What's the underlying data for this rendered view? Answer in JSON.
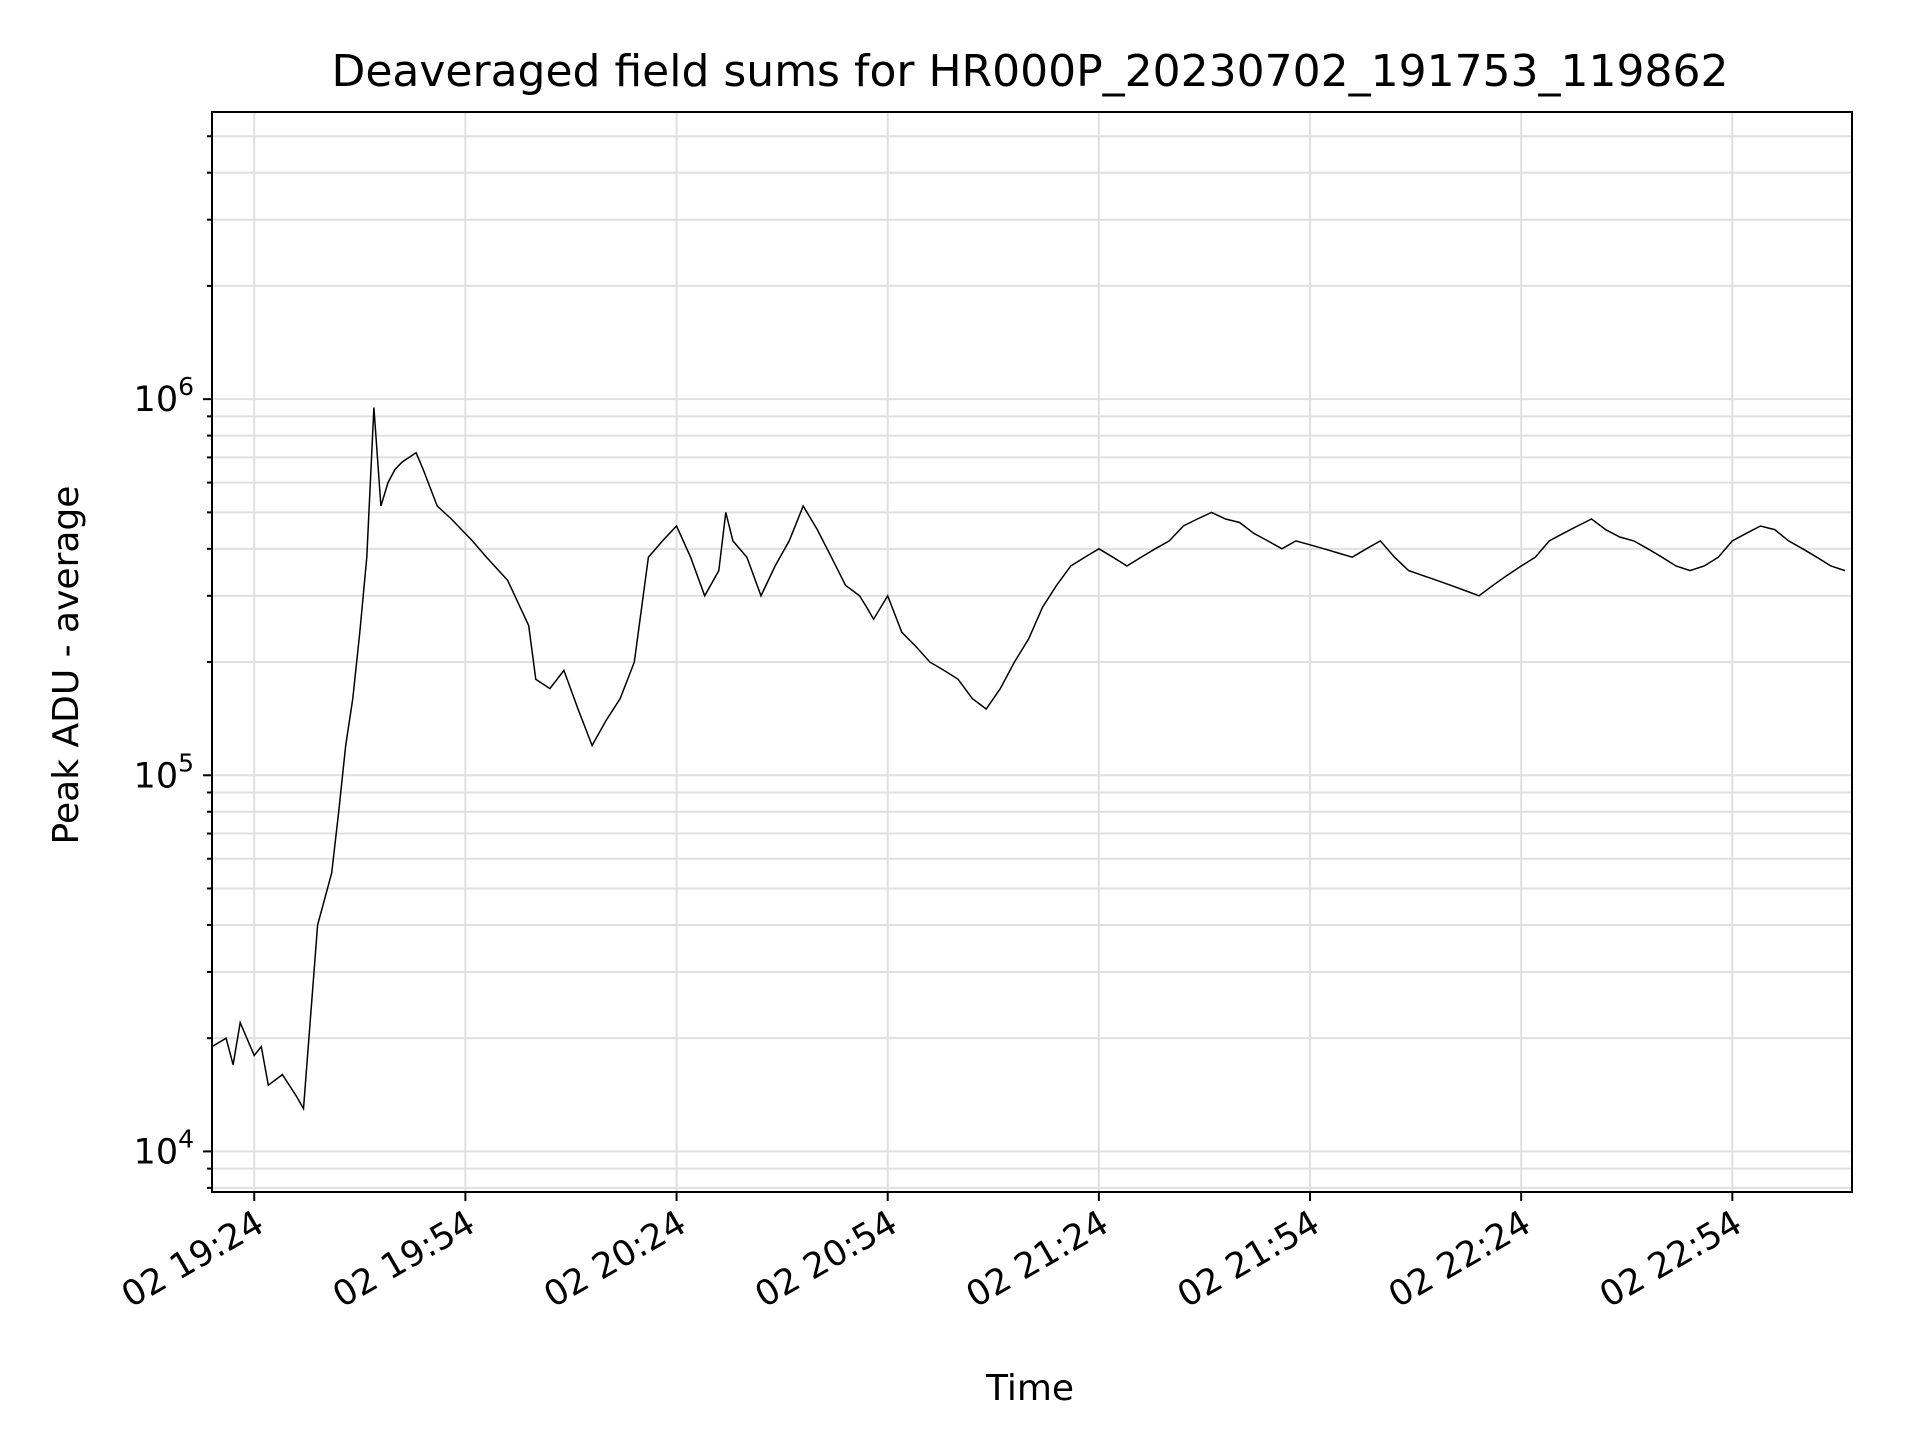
{
  "chart_data": {
    "type": "line",
    "title": "Deaveraged field sums for HR000P_20230702_191753_119862",
    "xlabel": "Time",
    "ylabel": "Peak ADU - average",
    "yscale": "log",
    "grid": true,
    "xlim": [
      "2023-07-02 19:18",
      "2023-07-02 23:11"
    ],
    "ylim": [
      7800,
      5800000
    ],
    "xticks": [
      {
        "value": "2023-07-02 19:24",
        "label": "02 19:24"
      },
      {
        "value": "2023-07-02 19:54",
        "label": "02 19:54"
      },
      {
        "value": "2023-07-02 20:24",
        "label": "02 20:24"
      },
      {
        "value": "2023-07-02 20:54",
        "label": "02 20:54"
      },
      {
        "value": "2023-07-02 21:24",
        "label": "02 21:24"
      },
      {
        "value": "2023-07-02 21:54",
        "label": "02 21:54"
      },
      {
        "value": "2023-07-02 22:24",
        "label": "02 22:24"
      },
      {
        "value": "2023-07-02 22:54",
        "label": "02 22:54"
      }
    ],
    "yticks": [
      {
        "value": 10000,
        "base": "10",
        "exp": "4"
      },
      {
        "value": 100000,
        "base": "10",
        "exp": "5"
      },
      {
        "value": 1000000,
        "base": "10",
        "exp": "6"
      }
    ],
    "line_color": "#000000",
    "grid_color": "#e0e0e0",
    "series": [
      {
        "x": [
          "2023-07-02 19:18",
          "2023-07-02 19:20",
          "2023-07-02 19:21",
          "2023-07-02 19:22",
          "2023-07-02 19:24",
          "2023-07-02 19:25",
          "2023-07-02 19:26",
          "2023-07-02 19:28",
          "2023-07-02 19:30",
          "2023-07-02 19:31",
          "2023-07-02 19:33",
          "2023-07-02 19:35",
          "2023-07-02 19:36",
          "2023-07-02 19:37",
          "2023-07-02 19:38",
          "2023-07-02 19:39",
          "2023-07-02 19:40",
          "2023-07-02 19:41",
          "2023-07-02 19:42",
          "2023-07-02 19:43",
          "2023-07-02 19:44",
          "2023-07-02 19:45",
          "2023-07-02 19:46",
          "2023-07-02 19:47",
          "2023-07-02 19:48",
          "2023-07-02 19:50",
          "2023-07-02 19:52",
          "2023-07-02 19:55",
          "2023-07-02 19:57",
          "2023-07-02 20:00",
          "2023-07-02 20:03",
          "2023-07-02 20:04",
          "2023-07-02 20:06",
          "2023-07-02 20:08",
          "2023-07-02 20:10",
          "2023-07-02 20:12",
          "2023-07-02 20:14",
          "2023-07-02 20:16",
          "2023-07-02 20:18",
          "2023-07-02 20:20",
          "2023-07-02 20:22",
          "2023-07-02 20:24",
          "2023-07-02 20:26",
          "2023-07-02 20:28",
          "2023-07-02 20:30",
          "2023-07-02 20:31",
          "2023-07-02 20:32",
          "2023-07-02 20:34",
          "2023-07-02 20:36",
          "2023-07-02 20:38",
          "2023-07-02 20:40",
          "2023-07-02 20:42",
          "2023-07-02 20:44",
          "2023-07-02 20:46",
          "2023-07-02 20:48",
          "2023-07-02 20:50",
          "2023-07-02 20:51",
          "2023-07-02 20:52",
          "2023-07-02 20:54",
          "2023-07-02 20:56",
          "2023-07-02 20:58",
          "2023-07-02 21:00",
          "2023-07-02 21:02",
          "2023-07-02 21:04",
          "2023-07-02 21:06",
          "2023-07-02 21:08",
          "2023-07-02 21:10",
          "2023-07-02 21:12",
          "2023-07-02 21:14",
          "2023-07-02 21:16",
          "2023-07-02 21:18",
          "2023-07-02 21:20",
          "2023-07-02 21:22",
          "2023-07-02 21:24",
          "2023-07-02 21:26",
          "2023-07-02 21:28",
          "2023-07-02 21:30",
          "2023-07-02 21:32",
          "2023-07-02 21:34",
          "2023-07-02 21:36",
          "2023-07-02 21:38",
          "2023-07-02 21:40",
          "2023-07-02 21:42",
          "2023-07-02 21:44",
          "2023-07-02 21:46",
          "2023-07-02 21:48",
          "2023-07-02 21:50",
          "2023-07-02 21:52",
          "2023-07-02 21:54",
          "2023-07-02 21:56",
          "2023-07-02 21:58",
          "2023-07-02 22:00",
          "2023-07-02 22:02",
          "2023-07-02 22:04",
          "2023-07-02 22:06",
          "2023-07-02 22:08",
          "2023-07-02 22:10",
          "2023-07-02 22:12",
          "2023-07-02 22:14",
          "2023-07-02 22:16",
          "2023-07-02 22:18",
          "2023-07-02 22:20",
          "2023-07-02 22:22",
          "2023-07-02 22:24",
          "2023-07-02 22:26",
          "2023-07-02 22:28",
          "2023-07-02 22:30",
          "2023-07-02 22:32",
          "2023-07-02 22:34",
          "2023-07-02 22:36",
          "2023-07-02 22:38",
          "2023-07-02 22:40",
          "2023-07-02 22:42",
          "2023-07-02 22:44",
          "2023-07-02 22:46",
          "2023-07-02 22:48",
          "2023-07-02 22:50",
          "2023-07-02 22:52",
          "2023-07-02 22:54",
          "2023-07-02 22:56",
          "2023-07-02 22:58",
          "2023-07-02 23:00",
          "2023-07-02 23:02",
          "2023-07-02 23:04",
          "2023-07-02 23:06",
          "2023-07-02 23:08",
          "2023-07-02 23:10"
        ],
        "y": [
          19000,
          20000,
          17000,
          22000,
          18000,
          19000,
          15000,
          16000,
          14000,
          13000,
          40000,
          55000,
          80000,
          120000,
          160000,
          240000,
          380000,
          950000,
          520000,
          600000,
          650000,
          680000,
          700000,
          720000,
          650000,
          520000,
          480000,
          420000,
          380000,
          330000,
          250000,
          180000,
          170000,
          190000,
          150000,
          120000,
          140000,
          160000,
          200000,
          380000,
          420000,
          460000,
          380000,
          300000,
          350000,
          500000,
          420000,
          380000,
          300000,
          360000,
          420000,
          520000,
          450000,
          380000,
          320000,
          300000,
          280000,
          260000,
          300000,
          240000,
          220000,
          200000,
          190000,
          180000,
          160000,
          150000,
          170000,
          200000,
          230000,
          280000,
          320000,
          360000,
          380000,
          400000,
          380000,
          360000,
          380000,
          400000,
          420000,
          460000,
          480000,
          500000,
          480000,
          470000,
          440000,
          420000,
          400000,
          420000,
          410000,
          400000,
          390000,
          380000,
          400000,
          420000,
          380000,
          350000,
          340000,
          330000,
          320000,
          310000,
          300000,
          320000,
          340000,
          360000,
          380000,
          420000,
          440000,
          460000,
          480000,
          450000,
          430000,
          420000,
          400000,
          380000,
          360000,
          350000,
          360000,
          380000,
          420000,
          440000,
          460000,
          450000,
          420000,
          400000,
          380000,
          360000,
          350000
        ]
      }
    ]
  }
}
